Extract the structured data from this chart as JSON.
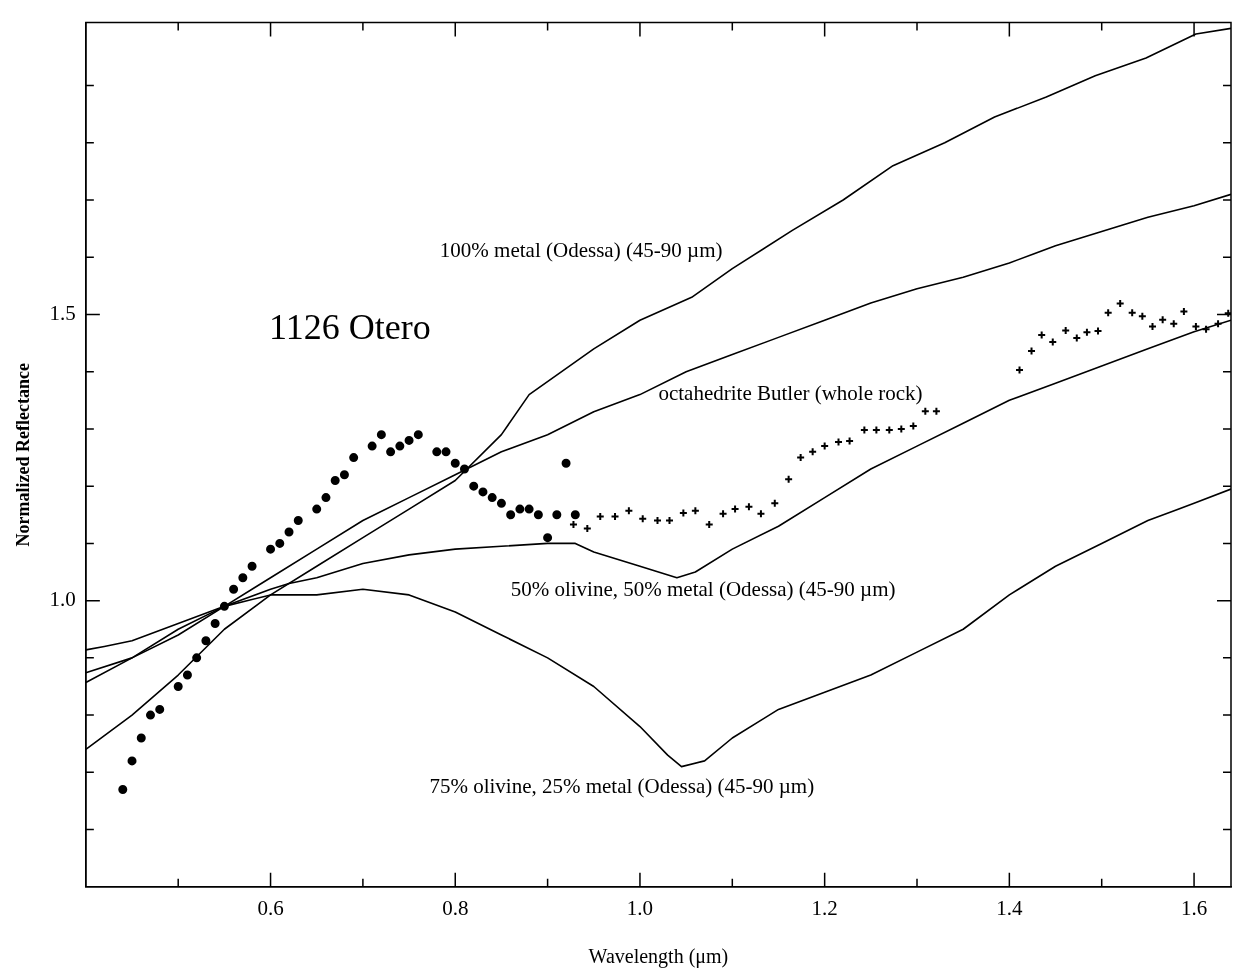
{
  "chart_data": {
    "type": "line",
    "xlabel": "Wavelength (μm)",
    "ylabel": "Normalized Reflectance",
    "xlim": [
      0.4,
      1.64
    ],
    "ylim": [
      0.5,
      2.01
    ],
    "xticks": [
      {
        "value": 0.5,
        "label": null
      },
      0.6,
      {
        "value": 0.7,
        "label": null
      },
      0.8,
      {
        "value": 0.9,
        "label": null
      },
      {
        "value": 1.0,
        "label": "1.0"
      },
      {
        "value": 1.1,
        "label": null
      },
      1.2,
      {
        "value": 1.3,
        "label": null
      },
      1.4,
      {
        "value": 1.5,
        "label": null
      },
      1.6
    ],
    "yticks": [
      {
        "value": 0.6,
        "label": null
      },
      {
        "value": 0.7,
        "label": null
      },
      {
        "value": 0.8,
        "label": null
      },
      {
        "value": 0.9,
        "label": null
      },
      {
        "value": 1.0,
        "label": "1.0"
      },
      {
        "value": 1.1,
        "label": null
      },
      {
        "value": 1.2,
        "label": null
      },
      {
        "value": 1.3,
        "label": null
      },
      {
        "value": 1.4,
        "label": null
      },
      1.5,
      {
        "value": 1.6,
        "label": null
      },
      {
        "value": 1.7,
        "label": null
      },
      {
        "value": 1.8,
        "label": null
      },
      {
        "value": 1.9,
        "label": null
      }
    ],
    "grid": false,
    "legend": false,
    "marker": "none",
    "line_style": "solid",
    "series": [
      {
        "name": "100% metal (Odessa) (45-90 µm)",
        "color": "#000000",
        "x": [
          0.4,
          0.45,
          0.5,
          0.55,
          0.6,
          0.65,
          0.7,
          0.75,
          0.8,
          0.85,
          0.88,
          0.95,
          1.0,
          1.056,
          1.1,
          1.165,
          1.22,
          1.274,
          1.33,
          1.384,
          1.44,
          1.493,
          1.548,
          1.602,
          1.64
        ],
        "values": [
          0.74,
          0.8,
          0.87,
          0.95,
          1.01,
          1.06,
          1.11,
          1.16,
          1.21,
          1.29,
          1.36,
          1.44,
          1.49,
          1.53,
          1.58,
          1.647,
          1.7,
          1.76,
          1.8,
          1.845,
          1.88,
          1.917,
          1.948,
          1.99,
          2.0
        ]
      },
      {
        "name": "octahedrite Butler (whole rock)",
        "color": "#000000",
        "x": [
          0.4,
          0.42,
          0.45,
          0.5,
          0.55,
          0.6,
          0.65,
          0.7,
          0.75,
          0.8,
          0.85,
          0.9,
          0.95,
          1.0,
          1.05,
          1.1,
          1.15,
          1.2,
          1.25,
          1.3,
          1.35,
          1.4,
          1.45,
          1.5,
          1.55,
          1.6,
          1.64
        ],
        "values": [
          0.914,
          0.92,
          0.93,
          0.96,
          0.99,
          1.04,
          1.09,
          1.14,
          1.18,
          1.22,
          1.26,
          1.29,
          1.33,
          1.36,
          1.4,
          1.43,
          1.46,
          1.49,
          1.52,
          1.545,
          1.565,
          1.59,
          1.62,
          1.645,
          1.67,
          1.69,
          1.71
        ]
      },
      {
        "name": "50% olivine, 50% metal (Odessa) (45-90 µm)",
        "color": "#000000",
        "x": [
          0.4,
          0.45,
          0.5,
          0.55,
          0.6,
          0.62,
          0.65,
          0.7,
          0.75,
          0.8,
          0.85,
          0.9,
          0.93,
          0.95,
          1.0,
          1.04,
          1.06,
          1.1,
          1.15,
          1.2,
          1.25,
          1.3,
          1.35,
          1.4,
          1.45,
          1.5,
          1.55,
          1.6,
          1.64
        ],
        "values": [
          0.874,
          0.9,
          0.94,
          0.99,
          1.02,
          1.03,
          1.04,
          1.065,
          1.08,
          1.09,
          1.095,
          1.1,
          1.1,
          1.085,
          1.06,
          1.04,
          1.05,
          1.09,
          1.13,
          1.18,
          1.23,
          1.27,
          1.31,
          1.35,
          1.38,
          1.41,
          1.44,
          1.47,
          1.49
        ]
      },
      {
        "name": "75% olivine, 25% metal (Odessa) (45-90 µm)",
        "color": "#000000",
        "x": [
          0.4,
          0.45,
          0.5,
          0.55,
          0.6,
          0.65,
          0.7,
          0.75,
          0.8,
          0.85,
          0.9,
          0.95,
          1.0,
          1.03,
          1.045,
          1.07,
          1.1,
          1.15,
          1.2,
          1.25,
          1.3,
          1.35,
          1.4,
          1.45,
          1.5,
          1.55,
          1.6,
          1.64
        ],
        "values": [
          0.857,
          0.9,
          0.95,
          0.99,
          1.01,
          1.01,
          1.02,
          1.01,
          0.98,
          0.94,
          0.9,
          0.85,
          0.78,
          0.73,
          0.71,
          0.72,
          0.76,
          0.81,
          0.84,
          0.87,
          0.91,
          0.95,
          1.01,
          1.06,
          1.1,
          1.14,
          1.17,
          1.195
        ]
      },
      {
        "name": "1126 Otero",
        "type": "scatter",
        "marker": "circle",
        "color": "#000000",
        "x": [
          0.44,
          0.45,
          0.46,
          0.47,
          0.48,
          0.5,
          0.51,
          0.52,
          0.53,
          0.54,
          0.55,
          0.56,
          0.57,
          0.58,
          0.6,
          0.61,
          0.62,
          0.63,
          0.65,
          0.66,
          0.67,
          0.68,
          0.69,
          0.71,
          0.72,
          0.73,
          0.74,
          0.75,
          0.76,
          0.78,
          0.79,
          0.8,
          0.81,
          0.82,
          0.83,
          0.84,
          0.85,
          0.86,
          0.87,
          0.88,
          0.89,
          0.9,
          0.91,
          0.92,
          0.93
        ],
        "values": [
          0.67,
          0.72,
          0.76,
          0.8,
          0.81,
          0.85,
          0.87,
          0.9,
          0.93,
          0.96,
          0.99,
          1.02,
          1.04,
          1.06,
          1.09,
          1.1,
          1.12,
          1.14,
          1.16,
          1.18,
          1.21,
          1.22,
          1.25,
          1.27,
          1.29,
          1.26,
          1.27,
          1.28,
          1.29,
          1.26,
          1.26,
          1.24,
          1.23,
          1.2,
          1.19,
          1.18,
          1.17,
          1.15,
          1.16,
          1.16,
          1.15,
          1.11,
          1.15,
          1.24,
          1.15
        ]
      },
      {
        "type": "scatter",
        "marker": "cross",
        "color": "#000000",
        "x": [
          0.928,
          0.943,
          0.957,
          0.973,
          0.988,
          1.003,
          1.019,
          1.032,
          1.047,
          1.06,
          1.075,
          1.09,
          1.103,
          1.118,
          1.131,
          1.146,
          1.161,
          1.174,
          1.187,
          1.2,
          1.215,
          1.227,
          1.243,
          1.256,
          1.27,
          1.283,
          1.296,
          1.309,
          1.321,
          1.411,
          1.424,
          1.435,
          1.447,
          1.461,
          1.473,
          1.484,
          1.496,
          1.507,
          1.52,
          1.533,
          1.544,
          1.555,
          1.566,
          1.578,
          1.589,
          1.602,
          1.613,
          1.626,
          1.637
        ],
        "values": [
          1.133,
          1.126,
          1.147,
          1.147,
          1.157,
          1.143,
          1.14,
          1.14,
          1.153,
          1.157,
          1.133,
          1.152,
          1.16,
          1.164,
          1.152,
          1.17,
          1.212,
          1.25,
          1.26,
          1.27,
          1.277,
          1.279,
          1.298,
          1.298,
          1.298,
          1.3,
          1.305,
          1.331,
          1.331,
          1.403,
          1.436,
          1.464,
          1.452,
          1.472,
          1.459,
          1.469,
          1.471,
          1.503,
          1.519,
          1.503,
          1.497,
          1.479,
          1.491,
          1.484,
          1.505,
          1.479,
          1.474,
          1.484,
          1.502
        ]
      }
    ]
  }
}
